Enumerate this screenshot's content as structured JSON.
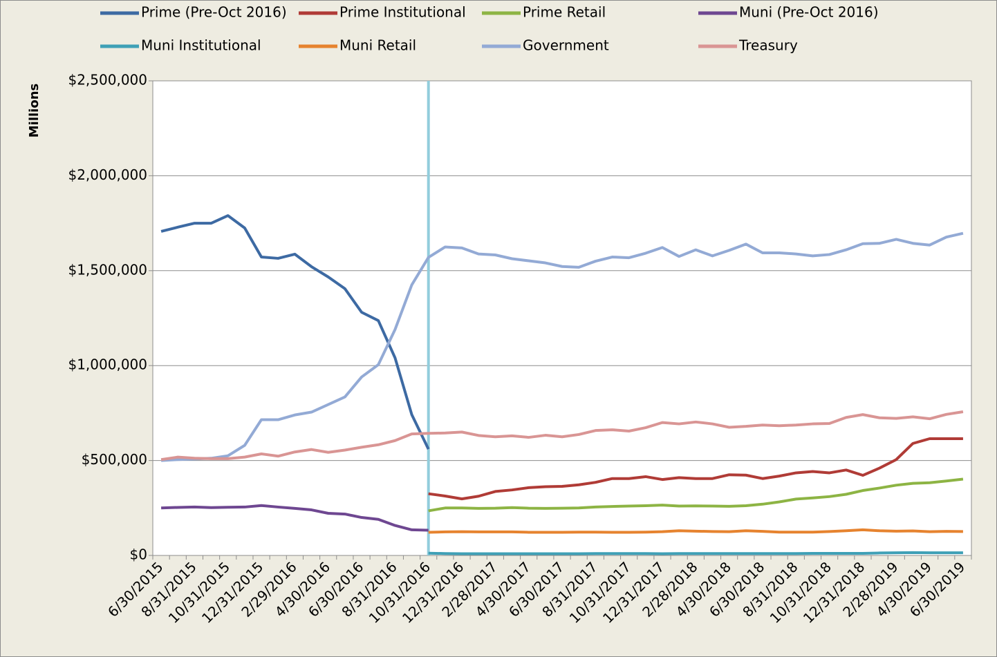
{
  "chart_data": {
    "type": "line",
    "y_label": "Millions",
    "categories": [
      "6/30/2015",
      null,
      "8/31/2015",
      null,
      "10/31/2015",
      null,
      "12/31/2015",
      null,
      "2/29/2016",
      null,
      "4/30/2016",
      null,
      "6/30/2016",
      null,
      "8/31/2016",
      null,
      "10/31/2016",
      null,
      "12/31/2016",
      null,
      "2/28/2017",
      null,
      "4/30/2017",
      null,
      "6/30/2017",
      null,
      "8/31/2017",
      null,
      "10/31/2017",
      null,
      "12/31/2017",
      null,
      "2/28/2018",
      null,
      "4/30/2018",
      null,
      "6/30/2018",
      null,
      "8/31/2018",
      null,
      "10/31/2018",
      null,
      "12/31/2018",
      null,
      "2/28/2019",
      null,
      "4/30/2019",
      null,
      "6/30/2019"
    ],
    "series": [
      {
        "name": "Prime (Pre-Oct 2016)",
        "color": "#3d6aa3",
        "values": [
          1707000,
          1729000,
          1750000,
          1750000,
          1790000,
          1725000,
          1572000,
          1565000,
          1587000,
          1521000,
          1467000,
          1405000,
          1281000,
          1237000,
          1041000,
          742000,
          560000,
          null,
          null,
          null,
          null,
          null,
          null,
          null,
          null,
          null,
          null,
          null,
          null,
          null,
          null,
          null,
          null,
          null,
          null,
          null,
          null,
          null,
          null,
          null,
          null,
          null,
          null,
          null,
          null,
          null,
          null,
          null,
          null
        ]
      },
      {
        "name": "Prime Institutional",
        "color": "#b03b36",
        "values": [
          null,
          null,
          null,
          null,
          null,
          null,
          null,
          null,
          null,
          null,
          null,
          null,
          null,
          null,
          null,
          null,
          325000,
          313000,
          298000,
          312000,
          337000,
          345000,
          357000,
          362000,
          364000,
          372000,
          385000,
          405000,
          405000,
          415000,
          400000,
          410000,
          405000,
          405000,
          425000,
          423000,
          405000,
          418000,
          435000,
          442000,
          435000,
          450000,
          422000,
          460000,
          505000,
          590000,
          615000,
          615000,
          615000
        ]
      },
      {
        "name": "Prime Retail",
        "color": "#8db444",
        "values": [
          null,
          null,
          null,
          null,
          null,
          null,
          null,
          null,
          null,
          null,
          null,
          null,
          null,
          null,
          null,
          null,
          235000,
          250000,
          250000,
          248000,
          249000,
          252000,
          249000,
          248000,
          249000,
          250000,
          255000,
          258000,
          260000,
          262000,
          265000,
          260000,
          261000,
          260000,
          259000,
          262000,
          270000,
          282000,
          297000,
          303000,
          310000,
          322000,
          342000,
          355000,
          370000,
          380000,
          383000,
          392000,
          402000
        ]
      },
      {
        "name": "Muni (Pre-Oct 2016)",
        "color": "#6e4791",
        "values": [
          250000,
          253000,
          255000,
          252000,
          254000,
          255000,
          263000,
          255000,
          248000,
          240000,
          222000,
          218000,
          200000,
          190000,
          158000,
          135000,
          133000,
          null,
          null,
          null,
          null,
          null,
          null,
          null,
          null,
          null,
          null,
          null,
          null,
          null,
          null,
          null,
          null,
          null,
          null,
          null,
          null,
          null,
          null,
          null,
          null,
          null,
          null,
          null,
          null,
          null,
          null,
          null,
          null
        ]
      },
      {
        "name": "Muni Institutional",
        "color": "#3fa0b6",
        "values": [
          null,
          null,
          null,
          null,
          null,
          null,
          null,
          null,
          null,
          null,
          null,
          null,
          null,
          null,
          null,
          null,
          12000,
          10000,
          9000,
          9000,
          9000,
          9000,
          9000,
          9000,
          9000,
          9000,
          10000,
          10000,
          10000,
          10000,
          9000,
          10000,
          10000,
          10000,
          10000,
          10000,
          10000,
          10000,
          10000,
          11000,
          11000,
          11000,
          11000,
          13000,
          14000,
          15000,
          14000,
          14000,
          14000
        ]
      },
      {
        "name": "Muni Retail",
        "color": "#e6832f",
        "values": [
          null,
          null,
          null,
          null,
          null,
          null,
          null,
          null,
          null,
          null,
          null,
          null,
          null,
          null,
          null,
          null,
          122000,
          124000,
          125000,
          124000,
          124000,
          124000,
          122000,
          122000,
          122000,
          123000,
          123000,
          122000,
          122000,
          123000,
          125000,
          130000,
          128000,
          126000,
          125000,
          130000,
          127000,
          123000,
          123000,
          123000,
          126000,
          130000,
          135000,
          130000,
          128000,
          129000,
          125000,
          127000,
          126000
        ]
      },
      {
        "name": "Government",
        "color": "#93aad5",
        "values": [
          500000,
          505000,
          508000,
          512000,
          525000,
          580000,
          715000,
          715000,
          740000,
          755000,
          795000,
          835000,
          940000,
          1005000,
          1190000,
          1425000,
          1570000,
          1625000,
          1620000,
          1588000,
          1583000,
          1563000,
          1552000,
          1541000,
          1522000,
          1518000,
          1550000,
          1572000,
          1568000,
          1592000,
          1622000,
          1575000,
          1610000,
          1578000,
          1607000,
          1640000,
          1594000,
          1594000,
          1588000,
          1578000,
          1585000,
          1610000,
          1642000,
          1644000,
          1665000,
          1644000,
          1635000,
          1677000,
          1697000
        ]
      },
      {
        "name": "Treasury",
        "color": "#d99594",
        "values": [
          505000,
          518000,
          512000,
          510000,
          510000,
          518000,
          535000,
          523000,
          545000,
          558000,
          543000,
          555000,
          570000,
          583000,
          605000,
          640000,
          643000,
          645000,
          650000,
          632000,
          625000,
          630000,
          622000,
          633000,
          625000,
          637000,
          658000,
          662000,
          655000,
          673000,
          700000,
          693000,
          703000,
          693000,
          675000,
          680000,
          687000,
          683000,
          687000,
          693000,
          695000,
          727000,
          742000,
          725000,
          722000,
          730000,
          720000,
          743000,
          757000
        ]
      }
    ],
    "ylim": [
      0,
      2500000
    ],
    "yticks": [
      {
        "value": 0,
        "label": "$0"
      },
      {
        "value": 500000,
        "label": "$500,000"
      },
      {
        "value": 1000000,
        "label": "$1,000,000"
      },
      {
        "value": 1500000,
        "label": "$1,500,000"
      },
      {
        "value": 2000000,
        "label": "$2,000,000"
      },
      {
        "value": 2500000,
        "label": "$2,500,000"
      }
    ],
    "grid": true,
    "legend": "top",
    "vline": "10/31/2016",
    "vline_color": "#92cddc"
  }
}
